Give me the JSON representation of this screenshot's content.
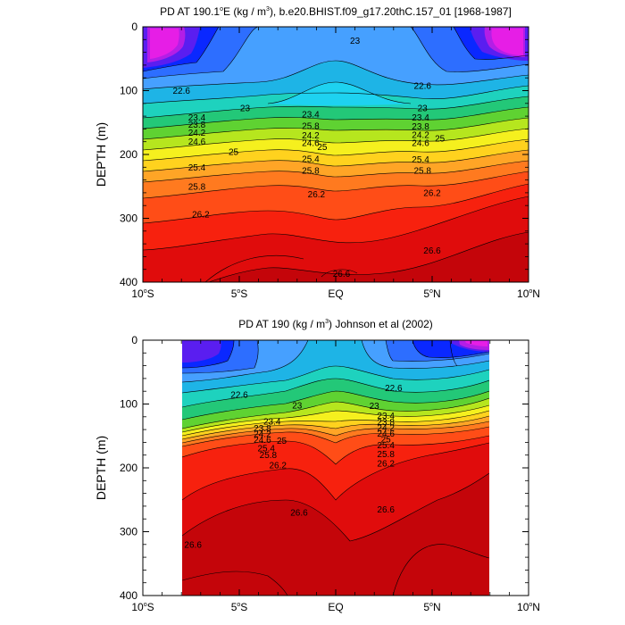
{
  "chart_data": [
    {
      "type": "contour",
      "title": "PD AT 190.1°E (kg / m³), b.e20.BHIST.f09_g17.20thC.157_01 [1968-1987]",
      "title_parts": {
        "pre": "PD AT 190.1",
        "deg": "o",
        "post1": "E (kg / m",
        "sup": "3",
        "post2": "), b.e20.BHIST.f09_g17.20thC.157_01 [1968-1987]"
      },
      "ylabel": "DEPTH (m)",
      "xlim": [
        -10,
        10
      ],
      "ylim": [
        0,
        400
      ],
      "y_inverted": true,
      "x_ticks": [
        {
          "value": -10,
          "num": "10",
          "deg": "o",
          "hemi": "S"
        },
        {
          "value": -5,
          "num": "5",
          "deg": "o",
          "hemi": "S"
        },
        {
          "value": 0,
          "num": "EQ",
          "deg": "",
          "hemi": ""
        },
        {
          "value": 5,
          "num": "5",
          "deg": "o",
          "hemi": "N"
        },
        {
          "value": 10,
          "num": "10",
          "deg": "o",
          "hemi": "N"
        }
      ],
      "y_ticks": [
        {
          "value": 0,
          "label": "0"
        },
        {
          "value": 100,
          "label": "100"
        },
        {
          "value": 200,
          "label": "200"
        },
        {
          "value": 300,
          "label": "300"
        },
        {
          "value": 400,
          "label": "400"
        }
      ],
      "data_lat_range": [
        -9.5,
        9.5
      ],
      "contour_labels": [
        {
          "lat": 1.0,
          "depth": 22,
          "text": "23"
        },
        {
          "lat": -8.0,
          "depth": 100,
          "text": "22.6"
        },
        {
          "lat": 4.5,
          "depth": 92,
          "text": "22.6"
        },
        {
          "lat": -4.7,
          "depth": 127,
          "text": "23"
        },
        {
          "lat": 4.5,
          "depth": 127,
          "text": "23"
        },
        {
          "lat": -1.3,
          "depth": 137,
          "text": "23.4"
        },
        {
          "lat": -7.2,
          "depth": 142,
          "text": "23.4"
        },
        {
          "lat": 4.4,
          "depth": 142,
          "text": "23.4"
        },
        {
          "lat": -7.2,
          "depth": 153,
          "text": "23.8"
        },
        {
          "lat": -1.3,
          "depth": 155,
          "text": "25.8"
        },
        {
          "lat": 4.4,
          "depth": 156,
          "text": "23.8"
        },
        {
          "lat": -7.2,
          "depth": 166,
          "text": "24.2"
        },
        {
          "lat": -1.3,
          "depth": 170,
          "text": "24.2"
        },
        {
          "lat": 4.4,
          "depth": 169,
          "text": "24.2"
        },
        {
          "lat": -7.2,
          "depth": 180,
          "text": "24.6"
        },
        {
          "lat": -1.3,
          "depth": 182,
          "text": "24.6"
        },
        {
          "lat": 4.4,
          "depth": 182,
          "text": "24.6"
        },
        {
          "lat": 5.4,
          "depth": 175,
          "text": "25"
        },
        {
          "lat": -5.3,
          "depth": 196,
          "text": "25"
        },
        {
          "lat": -0.7,
          "depth": 188,
          "text": "25"
        },
        {
          "lat": -1.3,
          "depth": 207,
          "text": "25.4"
        },
        {
          "lat": 4.4,
          "depth": 208,
          "text": "25.4"
        },
        {
          "lat": -7.2,
          "depth": 220,
          "text": "25.4"
        },
        {
          "lat": -1.3,
          "depth": 225,
          "text": "25.8"
        },
        {
          "lat": 4.5,
          "depth": 225,
          "text": "25.8"
        },
        {
          "lat": -7.2,
          "depth": 250,
          "text": "25.8"
        },
        {
          "lat": -1.0,
          "depth": 262,
          "text": "26.2"
        },
        {
          "lat": 5.0,
          "depth": 260,
          "text": "26.2"
        },
        {
          "lat": -7.0,
          "depth": 294,
          "text": "26.2"
        },
        {
          "lat": 5.0,
          "depth": 350,
          "text": "26.6"
        },
        {
          "lat": 0.3,
          "depth": 387,
          "text": "26.6"
        }
      ]
    },
    {
      "type": "contour",
      "title": "PD AT 190 (kg / m³) Johnson et al (2002)",
      "title_parts": {
        "pre": "PD AT 190 (kg / m",
        "deg": "",
        "post1": "",
        "sup": "3",
        "post2": ") Johnson et al (2002)"
      },
      "ylabel": "DEPTH (m)",
      "xlim": [
        -10,
        10
      ],
      "ylim": [
        0,
        400
      ],
      "y_inverted": true,
      "x_ticks": [
        {
          "value": -10,
          "num": "10",
          "deg": "o",
          "hemi": "S"
        },
        {
          "value": -5,
          "num": "5",
          "deg": "o",
          "hemi": "S"
        },
        {
          "value": 0,
          "num": "EQ",
          "deg": "",
          "hemi": ""
        },
        {
          "value": 5,
          "num": "5",
          "deg": "o",
          "hemi": "N"
        },
        {
          "value": 10,
          "num": "10",
          "deg": "o",
          "hemi": "N"
        }
      ],
      "y_ticks": [
        {
          "value": 0,
          "label": "0"
        },
        {
          "value": 100,
          "label": "100"
        },
        {
          "value": 200,
          "label": "200"
        },
        {
          "value": 300,
          "label": "300"
        },
        {
          "value": 400,
          "label": "400"
        }
      ],
      "data_lat_range": [
        -8.0,
        8.0
      ],
      "contour_labels": [
        {
          "lat": -5.0,
          "depth": 85,
          "text": "22.6"
        },
        {
          "lat": 3.0,
          "depth": 75,
          "text": "22.6"
        },
        {
          "lat": -2.0,
          "depth": 102,
          "text": "23"
        },
        {
          "lat": 2.0,
          "depth": 103,
          "text": "23"
        },
        {
          "lat": -3.3,
          "depth": 127,
          "text": "23.4"
        },
        {
          "lat": 2.6,
          "depth": 118,
          "text": "23.4"
        },
        {
          "lat": -3.8,
          "depth": 138,
          "text": "23.8"
        },
        {
          "lat": 2.6,
          "depth": 128,
          "text": "23.8"
        },
        {
          "lat": 2.6,
          "depth": 137,
          "text": "24.2"
        },
        {
          "lat": -3.8,
          "depth": 147,
          "text": "24.2"
        },
        {
          "lat": 2.6,
          "depth": 146,
          "text": "24.6"
        },
        {
          "lat": -3.8,
          "depth": 156,
          "text": "24.6"
        },
        {
          "lat": -2.8,
          "depth": 157,
          "text": "25"
        },
        {
          "lat": 2.6,
          "depth": 155,
          "text": "25"
        },
        {
          "lat": -3.6,
          "depth": 169,
          "text": "25.4"
        },
        {
          "lat": 2.6,
          "depth": 164,
          "text": "25.4"
        },
        {
          "lat": -3.5,
          "depth": 180,
          "text": "25.8"
        },
        {
          "lat": 2.6,
          "depth": 178,
          "text": "25.8"
        },
        {
          "lat": -3.0,
          "depth": 196,
          "text": "26.2"
        },
        {
          "lat": 2.6,
          "depth": 193,
          "text": "26.2"
        },
        {
          "lat": -1.9,
          "depth": 270,
          "text": "26.6"
        },
        {
          "lat": 2.6,
          "depth": 265,
          "text": "26.6"
        },
        {
          "lat": -7.4,
          "depth": 320,
          "text": "26.6"
        }
      ]
    }
  ]
}
